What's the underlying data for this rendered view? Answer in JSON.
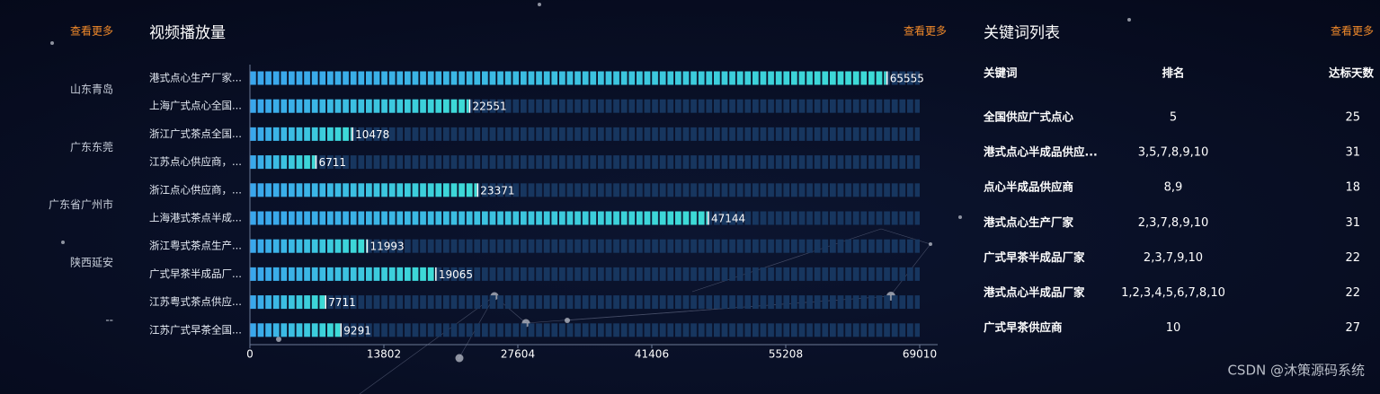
{
  "left_panel": {
    "more": "查看更多",
    "cities": [
      "山东青岛",
      "广东东莞",
      "广东省广州市",
      "陕西延安",
      "--"
    ]
  },
  "chart_data": {
    "type": "hbar",
    "title": "视频播放量",
    "more": "查看更多",
    "categories": [
      "港式点心生产厂家...",
      "上海广式点心全国...",
      "浙江广式茶点全国...",
      "江苏点心供应商，...",
      "浙江点心供应商，...",
      "上海港式茶点半成...",
      "浙江粤式茶点生产...",
      "广式早茶半成品厂...",
      "江苏粤式茶点供应...",
      "江苏广式早茶全国..."
    ],
    "values": [
      65555,
      22551,
      10478,
      6711,
      23371,
      47144,
      11993,
      19065,
      7711,
      9291
    ],
    "xlim": [
      0,
      69010
    ],
    "xticks": [
      0,
      13802,
      27604,
      41406,
      55208,
      69010
    ],
    "grid": false
  },
  "keyword_table": {
    "title": "关键词列表",
    "more": "查看更多",
    "headers": [
      "关键词",
      "排名",
      "达标天数"
    ],
    "rows": [
      [
        "全国供应广式点心",
        "5",
        "25"
      ],
      [
        "港式点心半成品供应...",
        "3,5,7,8,9,10",
        "31"
      ],
      [
        "点心半成品供应商",
        "8,9",
        "18"
      ],
      [
        "港式点心生产厂家",
        "2,3,7,8,9,10",
        "31"
      ],
      [
        "广式早茶半成品厂家",
        "2,3,7,9,10",
        "22"
      ],
      [
        "港式点心半成品厂家",
        "1,2,3,4,5,6,7,8,10",
        "22"
      ],
      [
        "广式早茶供应商",
        "10",
        "27"
      ]
    ]
  },
  "watermark": "CSDN @沐策源码系统"
}
